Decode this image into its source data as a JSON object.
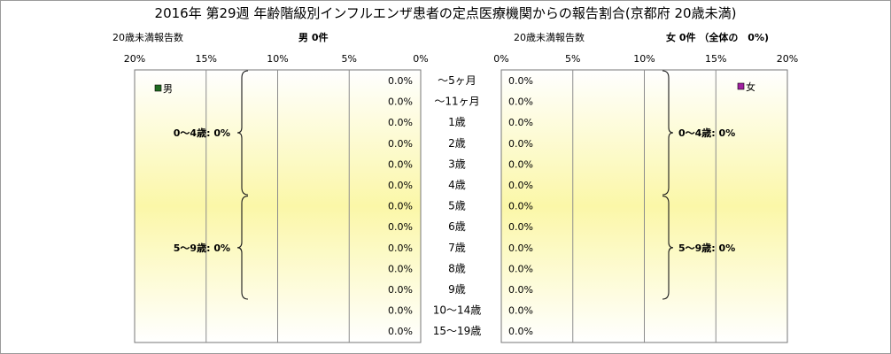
{
  "title": "2016年 第29週 年齢階級別インフルエンザ患者の定点医療機関からの報告割合(京都府 20歳未満)",
  "left_panel": {
    "count_label": "20歳未満報告数",
    "header": "男 0件",
    "legend": "男",
    "legend_color": "#1f6b1f",
    "group_labels": [
      "0～4歳: 0%",
      "5～9歳: 0%"
    ]
  },
  "right_panel": {
    "count_label": "20歳未満報告数",
    "header": "女 0件 （全体の　0%)",
    "legend": "女",
    "legend_color": "#a020a0",
    "group_labels": [
      "0～4歳: 0%",
      "5～9歳: 0%"
    ]
  },
  "chart_data": {
    "type": "bar",
    "orientation": "horizontal-back-to-back",
    "categories": [
      "～5ヶ月",
      "～11ヶ月",
      "1歳",
      "2歳",
      "3歳",
      "4歳",
      "5歳",
      "6歳",
      "7歳",
      "8歳",
      "9歳",
      "10～14歳",
      "15～19歳"
    ],
    "series": [
      {
        "name": "男",
        "values": [
          0,
          0,
          0,
          0,
          0,
          0,
          0,
          0,
          0,
          0,
          0,
          0,
          0
        ]
      },
      {
        "name": "女",
        "values": [
          0,
          0,
          0,
          0,
          0,
          0,
          0,
          0,
          0,
          0,
          0,
          0,
          0
        ]
      }
    ],
    "data_labels": [
      "0.0%",
      "0.0%",
      "0.0%",
      "0.0%",
      "0.0%",
      "0.0%",
      "0.0%",
      "0.0%",
      "0.0%",
      "0.0%",
      "0.0%",
      "0.0%",
      "0.0%"
    ],
    "xlim": [
      0,
      20
    ],
    "x_ticks_left": [
      "20%",
      "15%",
      "10%",
      "5%",
      "0%"
    ],
    "x_ticks_right": [
      "0%",
      "5%",
      "10%",
      "15%",
      "20%"
    ],
    "grid": true
  }
}
